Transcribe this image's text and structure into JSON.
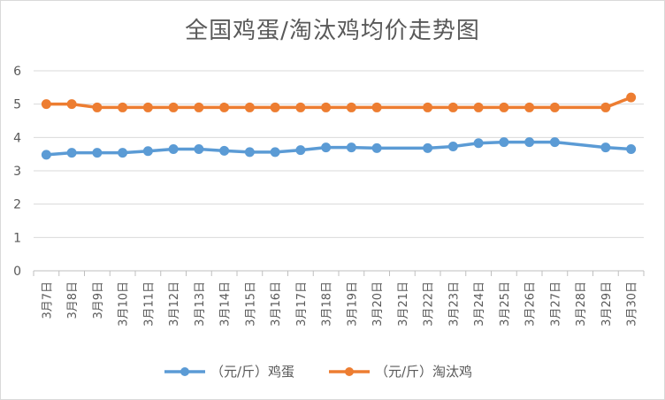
{
  "chart_data": {
    "type": "line",
    "title": "全国鸡蛋/淘汰鸡均价走势图",
    "xlabel": "",
    "ylabel": "",
    "ylim": [
      0,
      6
    ],
    "yticks": [
      0,
      1,
      2,
      3,
      4,
      5,
      6
    ],
    "grid": "horizontal",
    "legend": "bottom",
    "categories": [
      "3月7日",
      "3月8日",
      "3月9日",
      "3月10日",
      "3月11日",
      "3月12日",
      "3月13日",
      "3月14日",
      "3月15日",
      "3月16日",
      "3月17日",
      "3月18日",
      "3月19日",
      "3月20日",
      "3月21日",
      "3月22日",
      "3月23日",
      "3月24日",
      "3月25日",
      "3月26日",
      "3月27日",
      "3月28日",
      "3月29日",
      "3月30日"
    ],
    "series": [
      {
        "name": "（元/斤）鸡蛋",
        "color": "#5b9bd5",
        "values": [
          3.48,
          3.54,
          3.54,
          3.54,
          3.59,
          3.65,
          3.65,
          3.6,
          3.56,
          3.56,
          3.62,
          3.7,
          3.7,
          3.68,
          null,
          3.68,
          3.73,
          3.83,
          3.86,
          3.86,
          3.86,
          null,
          3.7,
          3.65
        ]
      },
      {
        "name": "（元/斤）淘汰鸡",
        "color": "#ed7d31",
        "values": [
          5.0,
          5.0,
          4.9,
          4.9,
          4.9,
          4.9,
          4.9,
          4.9,
          4.9,
          4.9,
          4.9,
          4.9,
          4.9,
          4.9,
          null,
          4.9,
          4.9,
          4.9,
          4.9,
          4.9,
          4.9,
          null,
          4.9,
          5.2
        ]
      }
    ]
  }
}
